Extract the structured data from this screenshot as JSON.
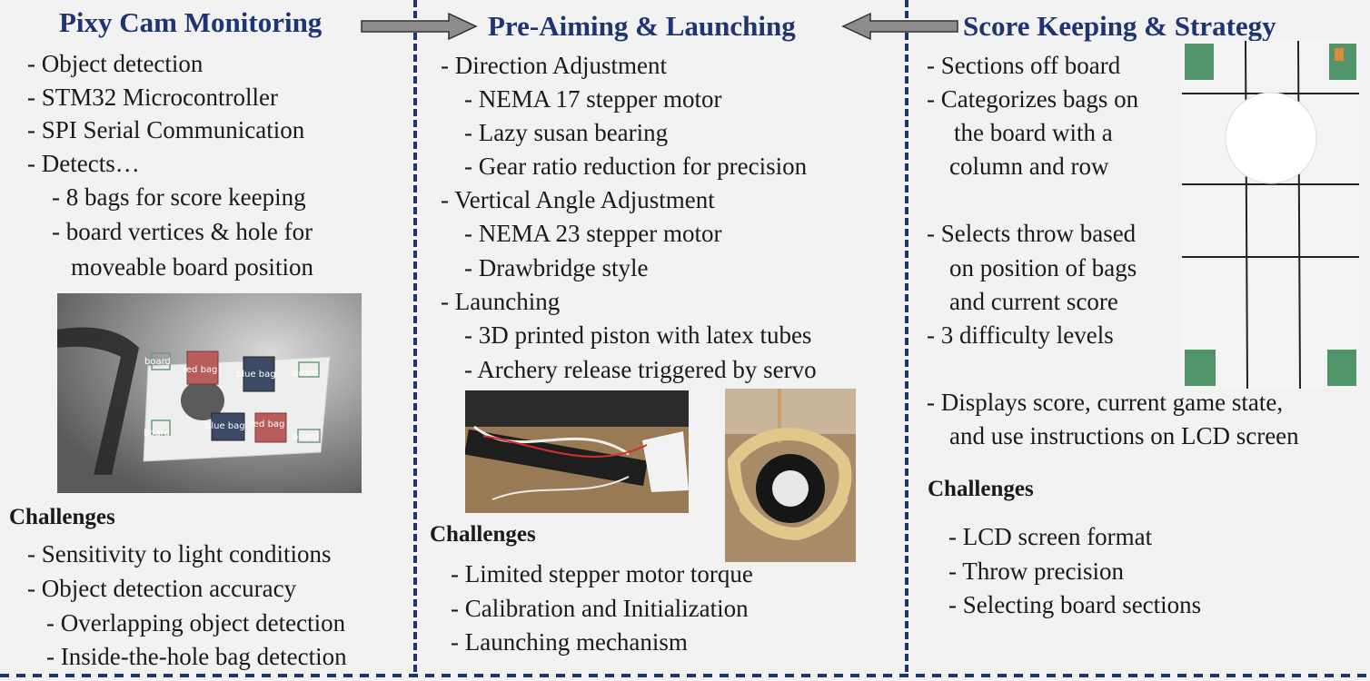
{
  "titles": {
    "col1": "Pixy Cam Monitoring",
    "col2": "Pre-Aiming & Launching",
    "col3": "Score Keeping & Strategy"
  },
  "col1": {
    "items": [
      "- Object detection",
      "- STM32 Microcontroller",
      "- SPI Serial Communication",
      "- Detects…",
      "- 8 bags for score keeping",
      "- board vertices & hole for",
      "moveable board position"
    ],
    "image_labels": [
      "board",
      "red bag",
      "blue bag",
      "board",
      "board",
      "blue bag",
      "red bag",
      "board"
    ],
    "challenges_title": "Challenges",
    "challenges": [
      "- Sensitivity to light conditions",
      "- Object detection accuracy",
      "- Overlapping object detection",
      "- Inside-the-hole bag detection"
    ]
  },
  "col2": {
    "items": [
      "- Direction Adjustment",
      "- NEMA 17 stepper motor",
      "- Lazy susan bearing",
      "- Gear ratio reduction for precision",
      "- Vertical Angle Adjustment",
      "- NEMA 23 stepper motor",
      "- Drawbridge style",
      "- Launching",
      "- 3D printed piston with latex tubes",
      "- Archery release triggered by servo"
    ],
    "challenges_title": "Challenges",
    "challenges": [
      "- Limited stepper motor torque",
      "- Calibration and Initialization",
      "- Launching mechanism"
    ]
  },
  "col3": {
    "items": [
      "- Sections off board",
      "- Categorizes bags on",
      "the board with a",
      "column and row",
      "- Selects throw based",
      "on position of bags",
      "and current score",
      "- 3 difficulty levels",
      "- Displays score, current game state,",
      "and use instructions on LCD screen"
    ],
    "challenges_title": "Challenges",
    "challenges": [
      "- LCD screen format",
      "- Throw precision",
      "- Selecting board sections"
    ]
  },
  "colors": {
    "title": "#1f3472",
    "divider": "#1f3472",
    "arrow_fill": "#8c8c8c",
    "background": "#f2f2f2",
    "red_bag": "#b85c5c",
    "blue_bag": "#3d4a66",
    "board_corner": "#3f8a5a"
  }
}
